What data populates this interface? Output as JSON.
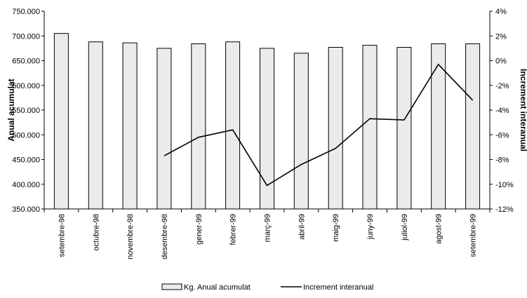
{
  "chart_data": {
    "type": "bar",
    "categories": [
      "setembre-98",
      "octubre-98",
      "novembre-98",
      "desembre-98",
      "gener-99",
      "febrer-99",
      "març-99",
      "abril-99",
      "maig-99",
      "juny-99",
      "juliol-99",
      "agost-99",
      "setembre-99"
    ],
    "series": [
      {
        "name": "Kg. Anual acumulat",
        "type": "bar",
        "axis": "left",
        "color": "#ebebeb",
        "values": [
          705000,
          688000,
          686000,
          675000,
          684000,
          688000,
          675000,
          665000,
          677000,
          681000,
          677000,
          684000,
          684000
        ]
      },
      {
        "name": "Increment interanual",
        "type": "line",
        "axis": "right",
        "color": "#000000",
        "values": [
          null,
          null,
          null,
          -7.7,
          -6.2,
          -5.6,
          -10.1,
          -8.4,
          -7.1,
          -4.7,
          -4.8,
          -0.3,
          -3.2
        ]
      }
    ],
    "ylabel": "Anual acumulat",
    "y2label": "Increment interanual",
    "ylim": [
      350000,
      750000
    ],
    "y2lim": [
      -12,
      4
    ],
    "yticks": [
      "350.000",
      "400.000",
      "450.000",
      "500.000",
      "550.000",
      "600.000",
      "650.000",
      "700.000",
      "750.000"
    ],
    "y2ticks": [
      "-12%",
      "-10%",
      "-8%",
      "-6%",
      "-4%",
      "-2%",
      "0%",
      "2%",
      "4%"
    ],
    "legend_position": "bottom",
    "grid": false
  }
}
